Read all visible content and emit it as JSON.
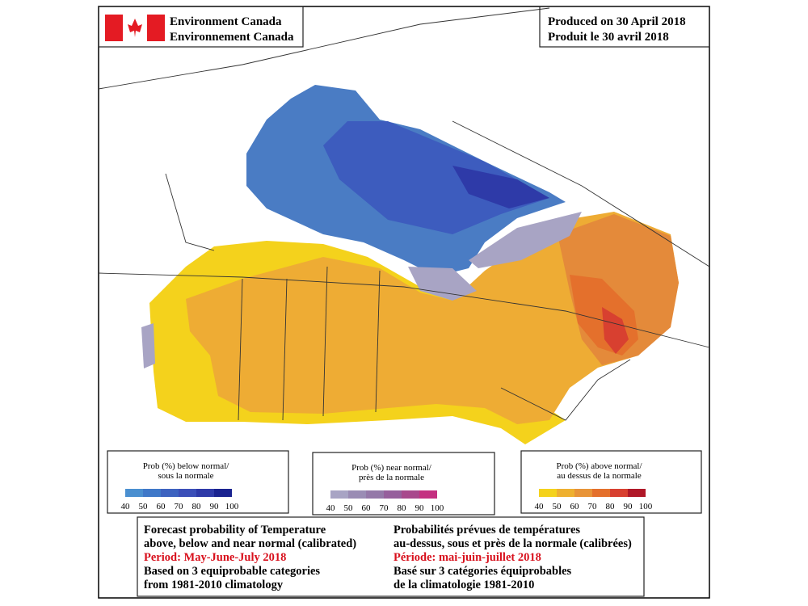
{
  "header": {
    "agency": [
      "Environment Canada",
      "Environnement Canada"
    ],
    "produced": [
      "Produced on 30 April 2018",
      "Produit le 30 avril 2018"
    ]
  },
  "legends": [
    {
      "title": [
        "Prob (%) below normal/",
        "sous la normale"
      ],
      "ticks": [
        "40",
        "50",
        "60",
        "70",
        "80",
        "90",
        "100"
      ],
      "colors": [
        "#4a8fd0",
        "#3f78c8",
        "#3d63c0",
        "#3b4fb8",
        "#2e3aa8",
        "#1a2390"
      ]
    },
    {
      "title": [
        "Prob (%) near normal/",
        "près de la normale"
      ],
      "ticks": [
        "40",
        "50",
        "60",
        "70",
        "80",
        "90",
        "100"
      ],
      "colors": [
        "#a8a4c4",
        "#9a8cb4",
        "#9478a8",
        "#965f9c",
        "#a8488c",
        "#c43080"
      ]
    },
    {
      "title": [
        "Prob (%) above normal/",
        "au dessus de la normale"
      ],
      "ticks": [
        "40",
        "50",
        "60",
        "70",
        "80",
        "90",
        "100"
      ],
      "colors": [
        "#f4d21c",
        "#eeb030",
        "#e89438",
        "#e4702c",
        "#d84030",
        "#b01828"
      ]
    }
  ],
  "caption": {
    "english": [
      "Forecast probability of Temperature",
      "above, below and near normal (calibrated)",
      "Period: May-June-July 2018",
      "Based on 3 equiprobable categories",
      " from 1981-2010 climatology"
    ],
    "french": [
      "Probabilités prévues de températures",
      "au-dessus, sous et près de la normale (calibrées)",
      "Période: mai-juin-juillet 2018",
      "Basé sur 3 catégories équiprobables",
      "de la climatologie 1981-2010"
    ]
  }
}
